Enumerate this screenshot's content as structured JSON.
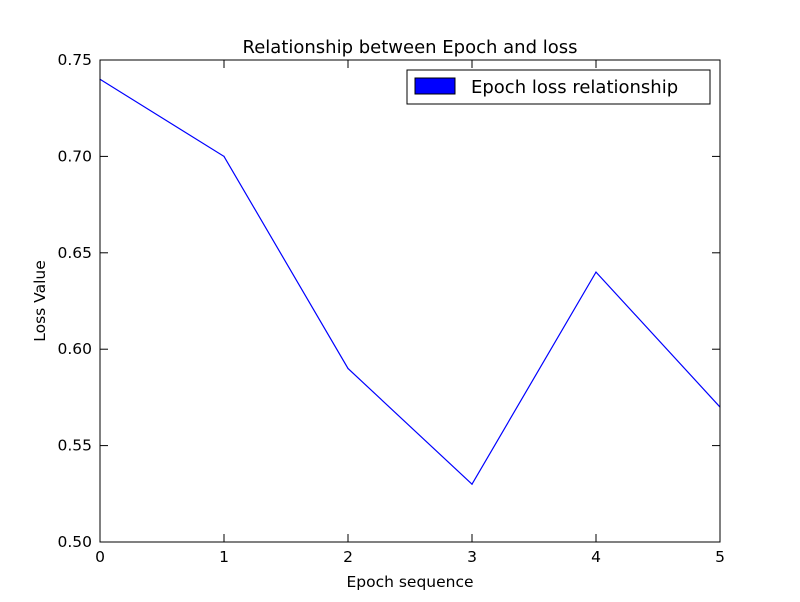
{
  "chart_data": {
    "type": "line",
    "title": "Relationship between Epoch and loss",
    "xlabel": "Epoch sequence",
    "ylabel": "Loss Value",
    "xlim": [
      0,
      5
    ],
    "ylim": [
      0.5,
      0.75
    ],
    "xticks": [
      "0",
      "1",
      "2",
      "3",
      "4",
      "5"
    ],
    "yticks": [
      "0.50",
      "0.55",
      "0.60",
      "0.65",
      "0.70",
      "0.75"
    ],
    "grid": false,
    "legend_position": "top-right",
    "series": [
      {
        "name": "Epoch loss relationship",
        "color": "#0000ff",
        "x": [
          0,
          1,
          2,
          3,
          4,
          5
        ],
        "y": [
          0.74,
          0.7,
          0.59,
          0.53,
          0.64,
          0.57
        ]
      }
    ]
  }
}
